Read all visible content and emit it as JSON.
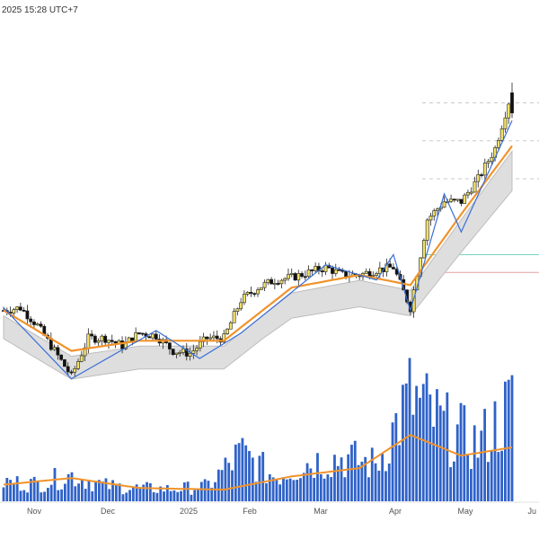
{
  "header": {
    "timestamp": "2025 15:28 UTC+7"
  },
  "colors": {
    "up_candle": "#f2e266",
    "down_candle": "#111111",
    "volume": "#2f62c8",
    "ma": "#f0932b",
    "zigzag": "#3a6fd8",
    "band_fill": "#dedede",
    "band_edge": "#bdbdbd",
    "level_green": "#76d4c0",
    "level_red": "#e4a0a0",
    "dashed_level": "#c9c9c9"
  },
  "chart_data": {
    "type": "candlestick",
    "title": "",
    "x_axis": {
      "tick_labels": [
        "Nov",
        "Dec",
        "2025",
        "Feb",
        "Mar",
        "Apr",
        "May",
        "Ju"
      ]
    },
    "y_axis": {
      "visible": false
    },
    "price_series": [
      {
        "date": "2024-10-24",
        "close": 0.0
      },
      {
        "date": "2024-10-31",
        "close": 0.1
      },
      {
        "date": "2024-11-07",
        "close": -0.6
      },
      {
        "date": "2024-11-14",
        "close": -1.6
      },
      {
        "date": "2024-11-21",
        "close": -2.6
      },
      {
        "date": "2024-11-28",
        "close": -1.1
      },
      {
        "date": "2024-12-05",
        "close": -1.1
      },
      {
        "date": "2024-12-12",
        "close": -1.4
      },
      {
        "date": "2024-12-19",
        "close": -0.9
      },
      {
        "date": "2024-12-26",
        "close": -1.0
      },
      {
        "date": "2025-01-02",
        "close": -1.6
      },
      {
        "date": "2025-01-09",
        "close": -1.7
      },
      {
        "date": "2025-01-16",
        "close": -1.1
      },
      {
        "date": "2025-01-23",
        "close": -1.1
      },
      {
        "date": "2025-01-30",
        "close": 0.4
      },
      {
        "date": "2025-02-06",
        "close": 0.9
      },
      {
        "date": "2025-02-13",
        "close": 1.2
      },
      {
        "date": "2025-02-20",
        "close": 1.3
      },
      {
        "date": "2025-02-27",
        "close": 1.5
      },
      {
        "date": "2025-03-06",
        "close": 1.7
      },
      {
        "date": "2025-03-13",
        "close": 1.4
      },
      {
        "date": "2025-03-20",
        "close": 1.4
      },
      {
        "date": "2025-03-27",
        "close": 1.6
      },
      {
        "date": "2025-04-03",
        "close": 1.7
      },
      {
        "date": "2025-04-10",
        "close": 0.1
      },
      {
        "date": "2025-04-17",
        "close": 3.6
      },
      {
        "date": "2025-04-24",
        "close": 4.3
      },
      {
        "date": "2025-05-01",
        "close": 4.3
      },
      {
        "date": "2025-05-08",
        "close": 5.2
      },
      {
        "date": "2025-05-15",
        "close": 6.4
      },
      {
        "date": "2025-05-22",
        "close": 8.7
      }
    ],
    "moving_average": {
      "x": [
        "2024-10-24",
        "2024-11-21",
        "2024-12-19",
        "2025-01-23",
        "2025-02-20",
        "2025-03-20",
        "2025-04-10",
        "2025-05-01",
        "2025-05-22"
      ],
      "y": [
        0.0,
        -1.6,
        -1.2,
        -1.2,
        0.9,
        1.4,
        1.0,
        3.8,
        6.5
      ]
    },
    "zigzag": {
      "x": [
        "2024-10-24",
        "2024-11-21",
        "2024-12-26",
        "2025-01-13",
        "2025-01-30",
        "2025-03-06",
        "2025-03-27",
        "2025-04-03",
        "2025-04-10",
        "2025-04-24",
        "2025-05-01",
        "2025-05-22"
      ],
      "y": [
        0.1,
        -2.7,
        -0.8,
        -1.9,
        -0.9,
        1.8,
        1.2,
        2.2,
        0.0,
        4.6,
        3.1,
        7.5
      ]
    },
    "levels": [
      {
        "kind": "dashed",
        "value": 8.2
      },
      {
        "kind": "dashed",
        "value": 6.7
      },
      {
        "kind": "dashed",
        "value": 5.2
      },
      {
        "kind": "solid",
        "color": "green",
        "value": 2.2
      },
      {
        "kind": "solid",
        "color": "red",
        "value": 1.5
      }
    ],
    "volume": [
      {
        "date": "2024-10-24",
        "value": 22
      },
      {
        "date": "2024-11-07",
        "value": 20
      },
      {
        "date": "2024-11-21",
        "value": 30
      },
      {
        "date": "2024-12-05",
        "value": 18
      },
      {
        "date": "2024-12-19",
        "value": 15
      },
      {
        "date": "2025-01-02",
        "value": 14
      },
      {
        "date": "2025-01-16",
        "value": 17
      },
      {
        "date": "2025-01-30",
        "value": 55
      },
      {
        "date": "2025-02-13",
        "value": 28
      },
      {
        "date": "2025-02-27",
        "value": 45
      },
      {
        "date": "2025-03-13",
        "value": 50
      },
      {
        "date": "2025-03-27",
        "value": 42
      },
      {
        "date": "2025-04-10",
        "value": 120
      },
      {
        "date": "2025-04-24",
        "value": 85
      },
      {
        "date": "2025-05-08",
        "value": 65
      },
      {
        "date": "2025-05-22",
        "value": 110
      }
    ],
    "volume_average": {
      "x": [
        "2024-10-24",
        "2024-11-21",
        "2024-12-19",
        "2025-01-23",
        "2025-02-20",
        "2025-03-20",
        "2025-04-10",
        "2025-05-01",
        "2025-05-22"
      ],
      "y": [
        20,
        28,
        16,
        14,
        30,
        40,
        80,
        55,
        65
      ]
    }
  }
}
